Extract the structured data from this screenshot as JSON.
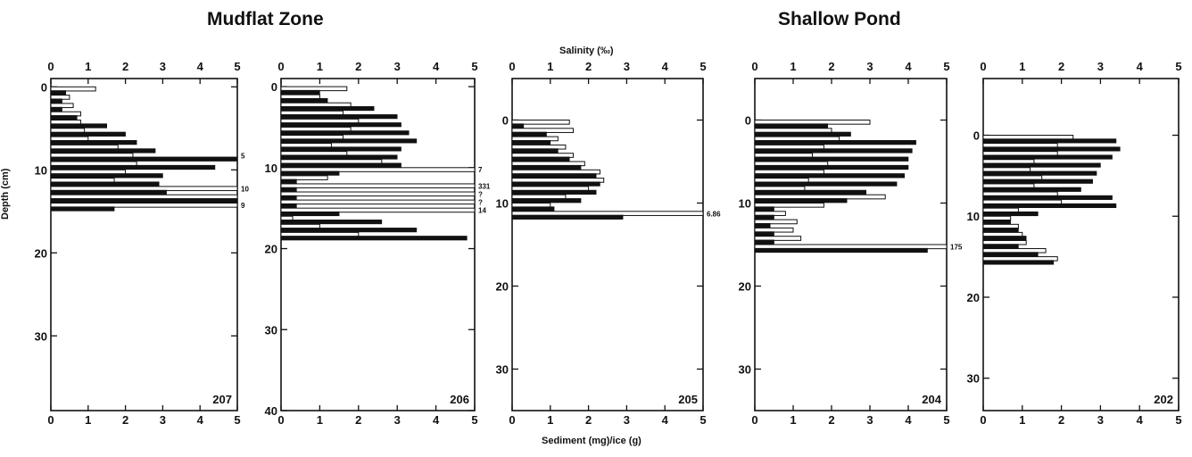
{
  "figure": {
    "titles": {
      "mudflat": "Mudflat Zone",
      "pond": "Shallow Pond"
    },
    "top_axis_label": "Salinity (‰)",
    "bottom_axis_label": "Sediment (mg)/ice (g)",
    "y_axis_label": "Depth (cm)"
  },
  "colors": {
    "sediment_fill": "#111111",
    "salinity_fill": "#ffffff",
    "ink": "#111111"
  },
  "chart_data": [
    {
      "type": "bar",
      "core": "207",
      "zone": "Mudflat Zone",
      "orientation": "horizontal",
      "xlim": [
        0,
        5
      ],
      "xticks": [
        0,
        1,
        2,
        3,
        4,
        5
      ],
      "ylim": [
        -1,
        39
      ],
      "yticks": [
        0,
        10,
        20,
        30
      ],
      "depth": [
        0,
        1,
        2,
        3,
        4,
        5,
        6,
        7,
        8,
        9,
        10,
        11,
        12,
        13,
        14
      ],
      "series": [
        {
          "name": "Sediment (mg)/ice (g)",
          "values": [
            0.4,
            0.3,
            0.3,
            0.7,
            1.5,
            2.0,
            2.3,
            2.8,
            5.0,
            4.4,
            3.0,
            2.9,
            3.1,
            5.0,
            1.7
          ],
          "offscale": [
            {
              "depth": 8,
              "label": "5"
            }
          ]
        },
        {
          "name": "Salinity (‰)",
          "values": [
            1.2,
            0.5,
            0.6,
            0.8,
            0.8,
            0.9,
            1.0,
            1.8,
            2.2,
            2.3,
            2.0,
            1.7,
            5.0,
            5.0,
            5.0
          ],
          "offscale": [
            {
              "depth": 12,
              "label": "10"
            },
            {
              "depth": 14,
              "label": "9"
            }
          ]
        }
      ]
    },
    {
      "type": "bar",
      "core": "206",
      "zone": "Mudflat Zone",
      "orientation": "horizontal",
      "xlim": [
        0,
        5
      ],
      "xticks": [
        0,
        1,
        2,
        3,
        4,
        5
      ],
      "ylim": [
        -1,
        40
      ],
      "yticks": [
        0,
        10,
        20,
        30,
        40
      ],
      "depth": [
        0,
        1,
        2,
        3,
        4,
        5,
        6,
        7,
        8,
        9,
        10,
        11,
        12,
        13,
        14,
        15,
        16,
        17,
        18
      ],
      "series": [
        {
          "name": "Sediment (mg)/ice (g)",
          "values": [
            1.0,
            1.2,
            2.4,
            3.0,
            3.1,
            3.3,
            3.5,
            3.1,
            3.0,
            3.1,
            1.5,
            0.4,
            0.4,
            0.4,
            0.4,
            1.5,
            2.6,
            3.5,
            4.8
          ],
          "offscale": []
        },
        {
          "name": "Salinity (‰)",
          "values": [
            1.7,
            1.0,
            1.8,
            1.6,
            2.0,
            1.8,
            1.6,
            1.3,
            1.7,
            2.6,
            5.0,
            1.2,
            5.0,
            5.0,
            5.0,
            5.0,
            0.3,
            1.0,
            2.0
          ],
          "offscale": [
            {
              "depth": 10,
              "label": "7"
            },
            {
              "depth": 12,
              "label": "331"
            },
            {
              "depth": 13,
              "label": "?"
            },
            {
              "depth": 14,
              "label": "?"
            },
            {
              "depth": 15,
              "label": "14"
            }
          ]
        }
      ]
    },
    {
      "type": "bar",
      "core": "205",
      "zone": "Mudflat Zone",
      "orientation": "horizontal",
      "xlim": [
        0,
        5
      ],
      "xticks": [
        0,
        1,
        2,
        3,
        4,
        5
      ],
      "ylim": [
        -5,
        35
      ],
      "yticks": [
        0,
        10,
        20,
        30
      ],
      "depth": [
        0,
        1,
        2,
        3,
        4,
        5,
        6,
        7,
        8,
        9,
        10,
        11
      ],
      "series": [
        {
          "name": "Sediment (mg)/ice (g)",
          "values": [
            0.3,
            0.9,
            1.0,
            1.2,
            1.5,
            1.8,
            2.2,
            2.3,
            2.2,
            1.8,
            1.1,
            2.9
          ],
          "offscale": []
        },
        {
          "name": "Salinity (‰)",
          "values": [
            1.5,
            1.6,
            1.2,
            1.4,
            1.6,
            1.9,
            2.3,
            2.4,
            2.0,
            1.4,
            1.0,
            5.0
          ],
          "offscale": [
            {
              "depth": 11,
              "label": "6.86"
            }
          ]
        }
      ]
    },
    {
      "type": "bar",
      "core": "204",
      "zone": "Shallow Pond",
      "orientation": "horizontal",
      "xlim": [
        0,
        5
      ],
      "xticks": [
        0,
        1,
        2,
        3,
        4,
        5
      ],
      "ylim": [
        -5,
        35
      ],
      "yticks": [
        0,
        10,
        20,
        30
      ],
      "depth": [
        0,
        1,
        2,
        3,
        4,
        5,
        6,
        7,
        8,
        9,
        10,
        11,
        12,
        13,
        14,
        15
      ],
      "series": [
        {
          "name": "Sediment (mg)/ice (g)",
          "values": [
            1.9,
            2.5,
            4.2,
            4.1,
            4.0,
            4.0,
            3.9,
            3.7,
            2.9,
            2.4,
            0.5,
            0.5,
            0.4,
            0.5,
            0.5,
            4.5
          ],
          "offscale": []
        },
        {
          "name": "Salinity (‰)",
          "values": [
            3.0,
            2.0,
            2.2,
            1.8,
            1.5,
            1.9,
            1.8,
            1.4,
            1.3,
            3.4,
            1.8,
            0.8,
            1.1,
            1.0,
            1.2,
            5.0
          ],
          "offscale": [
            {
              "depth": 15,
              "label": "175"
            }
          ]
        }
      ]
    },
    {
      "type": "bar",
      "core": "202",
      "zone": "Shallow Pond",
      "orientation": "horizontal",
      "xlim": [
        0,
        5
      ],
      "xticks": [
        0,
        1,
        2,
        3,
        4,
        5
      ],
      "ylim": [
        -7,
        34
      ],
      "yticks": [
        0,
        10,
        20,
        30
      ],
      "depth": [
        0,
        1,
        2,
        3,
        4,
        5,
        6,
        7,
        8,
        9,
        10,
        11,
        12,
        13,
        14,
        15
      ],
      "series": [
        {
          "name": "Sediment (mg)/ice (g)",
          "values": [
            3.4,
            3.5,
            3.3,
            3.0,
            2.9,
            2.8,
            2.5,
            3.3,
            3.4,
            1.4,
            0.7,
            0.9,
            1.1,
            0.9,
            1.4,
            1.8
          ],
          "offscale": []
        },
        {
          "name": "Salinity (‰)",
          "values": [
            2.3,
            1.9,
            1.9,
            1.3,
            1.2,
            1.5,
            1.3,
            1.9,
            2.0,
            0.9,
            0.7,
            0.9,
            1.0,
            1.1,
            1.6,
            1.9
          ],
          "offscale": []
        }
      ]
    }
  ]
}
